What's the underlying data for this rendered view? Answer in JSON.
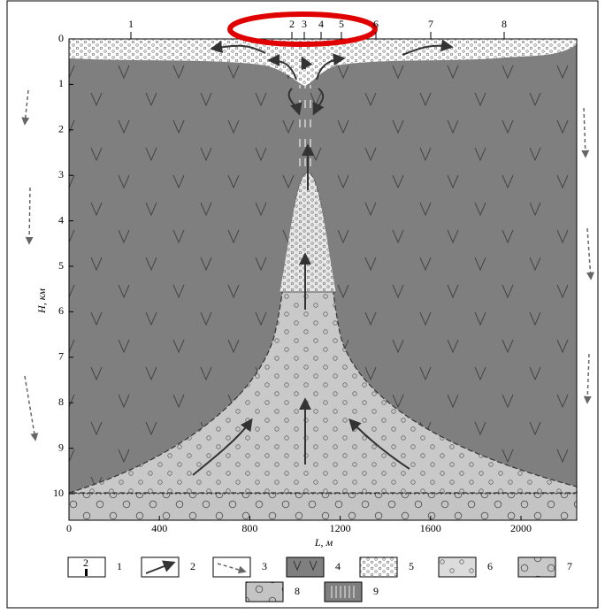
{
  "wells": [
    "1",
    "2",
    "3",
    "4",
    "5",
    "6",
    "7",
    "8"
  ],
  "y_axis": {
    "label": "H, км",
    "ticks": [
      "0",
      "1",
      "2",
      "3",
      "4",
      "5",
      "6",
      "7",
      "8",
      "9",
      "10"
    ]
  },
  "x_axis": {
    "label": "L, м",
    "ticks": [
      "0",
      "400",
      "800",
      "1200",
      "1600",
      "2000"
    ]
  },
  "legend": [
    {
      "number": "1",
      "symbol_text": "2"
    },
    {
      "number": "2"
    },
    {
      "number": "3"
    },
    {
      "number": "4"
    },
    {
      "number": "5"
    },
    {
      "number": "6"
    },
    {
      "number": "7"
    },
    {
      "number": "8"
    },
    {
      "number": "9"
    }
  ]
}
